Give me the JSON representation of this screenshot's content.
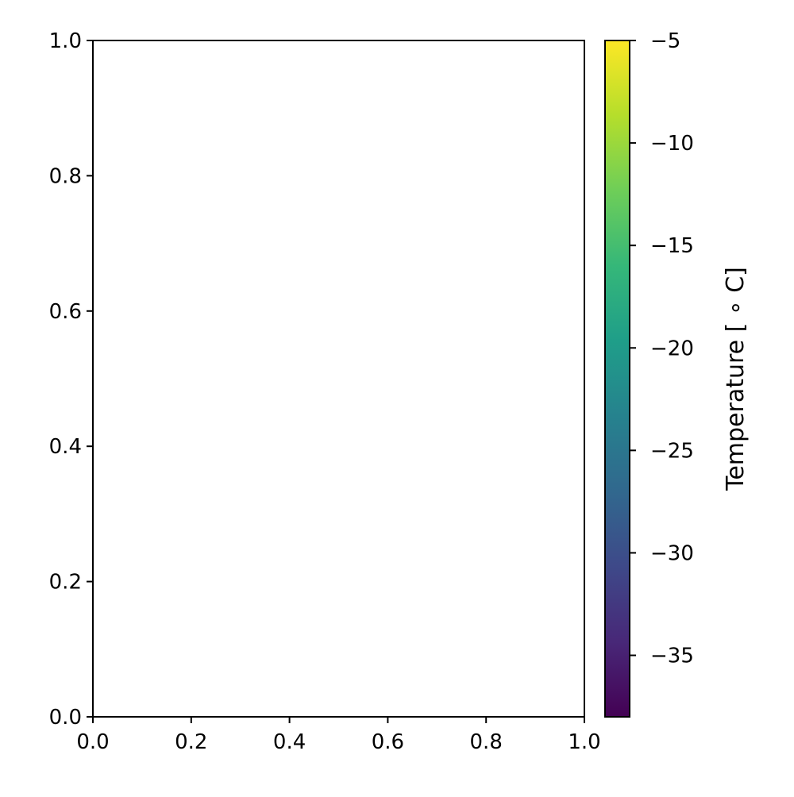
{
  "chart_data": {
    "type": "heatmap",
    "title": "",
    "xlabel": "",
    "ylabel": "",
    "xlim": [
      0.0,
      1.0
    ],
    "ylim": [
      0.0,
      1.0
    ],
    "x_ticks": [
      "0.0",
      "0.2",
      "0.4",
      "0.6",
      "0.8",
      "1.0"
    ],
    "y_ticks": [
      "0.0",
      "0.2",
      "0.4",
      "0.6",
      "0.8",
      "1.0"
    ],
    "grid": false,
    "values": [],
    "colorbar": {
      "label": "Temperature [$^\\circ$C]",
      "label_display": "Temperature [ ∘ C]",
      "range": [
        -38,
        -5
      ],
      "ticks": [
        "−35",
        "−30",
        "−25",
        "−20",
        "−15",
        "−10",
        "−5"
      ],
      "tick_values": [
        -35,
        -30,
        -25,
        -20,
        -15,
        -10,
        -5
      ],
      "colormap": "viridis",
      "colors": [
        "#440154",
        "#482878",
        "#3e4989",
        "#31688e",
        "#26828e",
        "#1f9e89",
        "#35b779",
        "#6ece58",
        "#b5de2b",
        "#fde725"
      ]
    }
  }
}
